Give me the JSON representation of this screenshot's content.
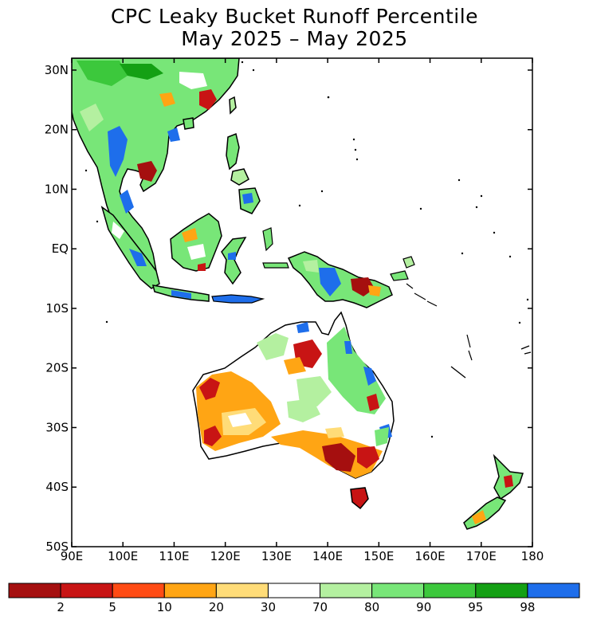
{
  "title": "CPC Leaky Bucket Runoff Percentile",
  "subtitle": "May 2025 – May 2025",
  "map": {
    "lon_range": [
      90,
      180
    ],
    "lat_range": [
      -50,
      32
    ],
    "lat_ticks": [
      {
        "value": 30,
        "label": "30N"
      },
      {
        "value": 20,
        "label": "20N"
      },
      {
        "value": 10,
        "label": "10N"
      },
      {
        "value": 0,
        "label": "EQ"
      },
      {
        "value": -10,
        "label": "10S"
      },
      {
        "value": -20,
        "label": "20S"
      },
      {
        "value": -30,
        "label": "30S"
      },
      {
        "value": -40,
        "label": "40S"
      },
      {
        "value": -50,
        "label": "50S"
      }
    ],
    "lon_ticks": [
      {
        "value": 90,
        "label": "90E"
      },
      {
        "value": 100,
        "label": "100E"
      },
      {
        "value": 110,
        "label": "110E"
      },
      {
        "value": 120,
        "label": "120E"
      },
      {
        "value": 130,
        "label": "130E"
      },
      {
        "value": 140,
        "label": "140E"
      },
      {
        "value": 150,
        "label": "150E"
      },
      {
        "value": 160,
        "label": "160E"
      },
      {
        "value": 170,
        "label": "170E"
      },
      {
        "value": 180,
        "label": "180"
      }
    ]
  },
  "colorbar": {
    "colors": [
      "#a50f0f",
      "#c81414",
      "#ff4b14",
      "#ffa514",
      "#ffdc78",
      "#ffffff",
      "#b4f0a0",
      "#78e678",
      "#3cc83c",
      "#14a014",
      "#1e6eeb"
    ],
    "labels": [
      "2",
      "5",
      "10",
      "20",
      "30",
      "70",
      "80",
      "90",
      "95",
      "98"
    ]
  },
  "colors": {
    "ocean": "#ffffff",
    "coastline": "#000000",
    "frame": "#000000"
  }
}
